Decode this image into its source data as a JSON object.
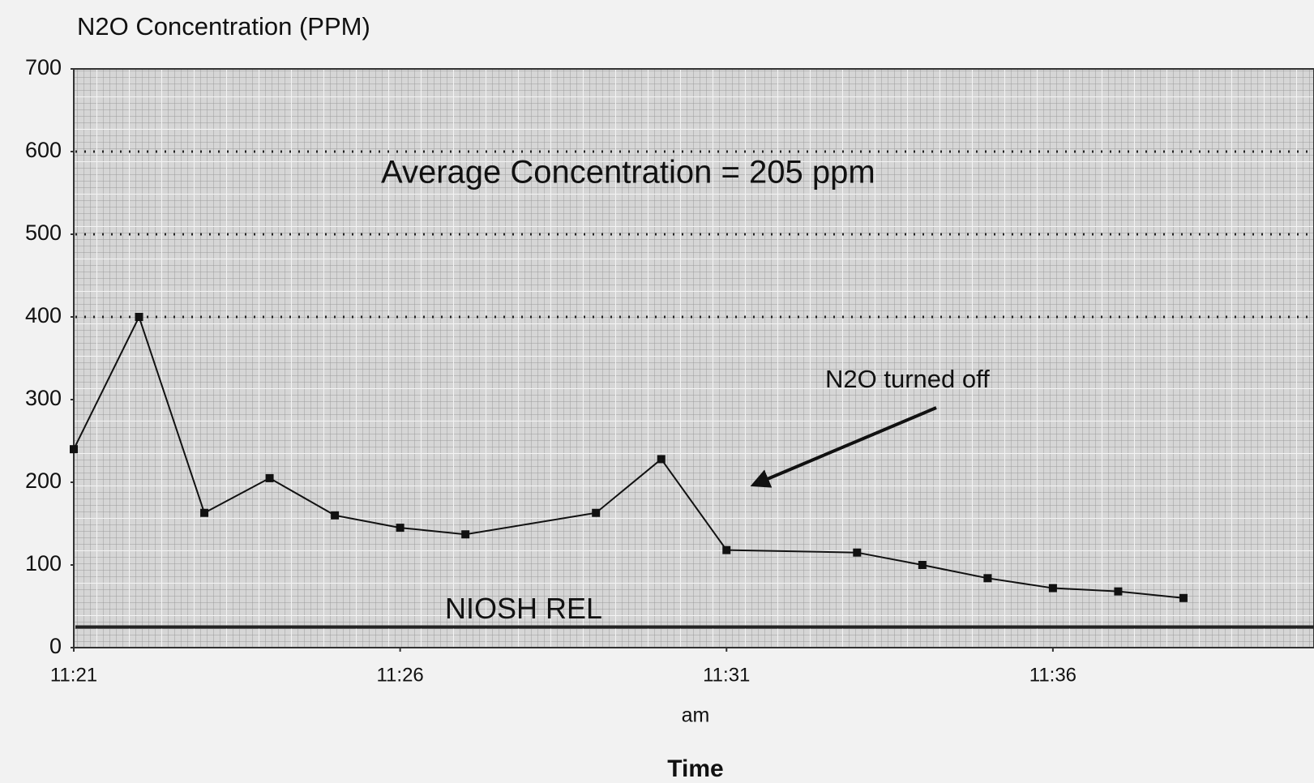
{
  "chart_data": {
    "type": "line",
    "title": "N2O Concentration (PPM)",
    "x_label": "Time",
    "x_sublabel": "am",
    "x": [
      "11:21",
      "11:22",
      "11:23",
      "11:24",
      "11:25",
      "11:26",
      "11:27",
      "11:29",
      "11:30",
      "11:31",
      "11:33",
      "11:34",
      "11:35",
      "11:36",
      "11:37",
      "11:38"
    ],
    "series": [
      {
        "name": "N2O",
        "color": "#111111",
        "values": [
          240,
          400,
          163,
          205,
          160,
          145,
          137,
          163,
          228,
          118,
          115,
          100,
          84,
          72,
          68,
          60
        ]
      }
    ],
    "xlim": [
      "11:21",
      "11:40"
    ],
    "xticks": [
      "11:21",
      "11:26",
      "11:31",
      "11:36"
    ],
    "ylim": [
      0,
      700
    ],
    "yticks": [
      0,
      100,
      200,
      300,
      400,
      500,
      600,
      700
    ],
    "reference_lines": [
      {
        "value": 400,
        "style": "dotted"
      },
      {
        "value": 500,
        "style": "dotted"
      },
      {
        "value": 600,
        "style": "dotted"
      },
      {
        "value": 25,
        "style": "solid",
        "label": "NIOSH REL"
      }
    ],
    "annotations": [
      "Average Concentration = 205 ppm",
      "N2O turned off"
    ]
  }
}
